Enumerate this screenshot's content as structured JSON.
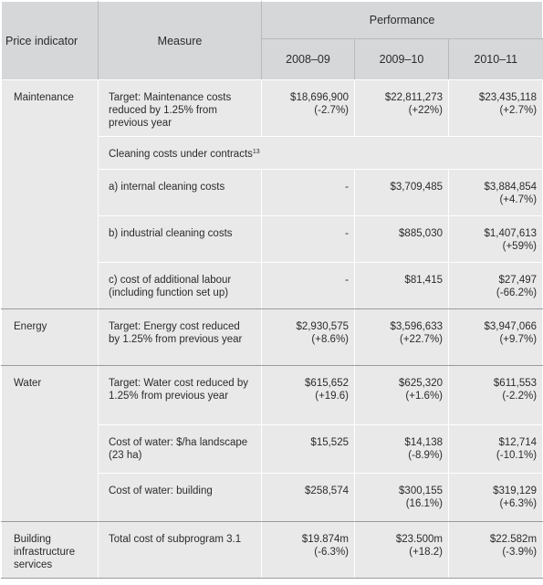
{
  "header": {
    "price_indicator": "Price indicator",
    "measure": "Measure",
    "performance": "Performance",
    "years": [
      "2008–09",
      "2009–10",
      "2010–11"
    ]
  },
  "rows": [
    {
      "indicator": "Maintenance",
      "measure": "Target: Maintenance costs reduced by 1.25% from previous year",
      "values": [
        [
          "$18,696,900",
          "(-2.7%)"
        ],
        [
          "$22,811,273",
          "(+22%)"
        ],
        [
          "$23,435,118",
          "(+2.7%)"
        ]
      ]
    },
    {
      "indicator": "",
      "measure": "Cleaning costs under contracts",
      "measure_sup": "13",
      "values": []
    },
    {
      "indicator": "",
      "measure": "a) internal cleaning costs",
      "values": [
        [
          "-",
          ""
        ],
        [
          "$3,709,485",
          ""
        ],
        [
          "$3,884,854",
          "(+4.7%)"
        ]
      ]
    },
    {
      "indicator": "",
      "measure": "b) industrial cleaning costs",
      "values": [
        [
          "-",
          ""
        ],
        [
          "$885,030",
          ""
        ],
        [
          "$1,407,613",
          "(+59%)"
        ]
      ]
    },
    {
      "indicator": "",
      "measure": "c) cost of additional labour (including function set up)",
      "values": [
        [
          "-",
          ""
        ],
        [
          "$81,415",
          ""
        ],
        [
          "$27,497",
          "(-66.2%)"
        ]
      ]
    },
    {
      "indicator": "Energy",
      "measure": "Target: Energy cost reduced by 1.25% from previous year",
      "values": [
        [
          "$2,930,575",
          "(+8.6%)"
        ],
        [
          "$3,596,633",
          "(+22.7%)"
        ],
        [
          "$3,947,066",
          "(+9.7%)"
        ]
      ]
    },
    {
      "indicator": "Water",
      "measure": "Target: Water cost reduced by 1.25% from previous year",
      "values": [
        [
          "$615,652",
          "(+19.6)"
        ],
        [
          "$625,320",
          "(+1.6%)"
        ],
        [
          "$611,553",
          "(-2.2%)"
        ]
      ]
    },
    {
      "indicator": "",
      "measure": "Cost of water: $/ha landscape (23 ha)",
      "values": [
        [
          "$15,525",
          ""
        ],
        [
          "$14,138",
          "(-8.9%)"
        ],
        [
          "$12,714",
          "(-10.1%)"
        ]
      ]
    },
    {
      "indicator": "",
      "measure": "Cost of water: building",
      "values": [
        [
          "$258,574",
          ""
        ],
        [
          "$300,155",
          "(16.1%)"
        ],
        [
          "$319,129",
          "(+6.3%)"
        ]
      ]
    },
    {
      "indicator": "Building infrastructure services",
      "measure": "Total cost of subprogram 3.1",
      "values": [
        [
          "$19.874m",
          "(-6.3%)"
        ],
        [
          "$23.500m",
          "(+18.2)"
        ],
        [
          "$22.582m",
          "(-3.9%)"
        ]
      ]
    }
  ]
}
